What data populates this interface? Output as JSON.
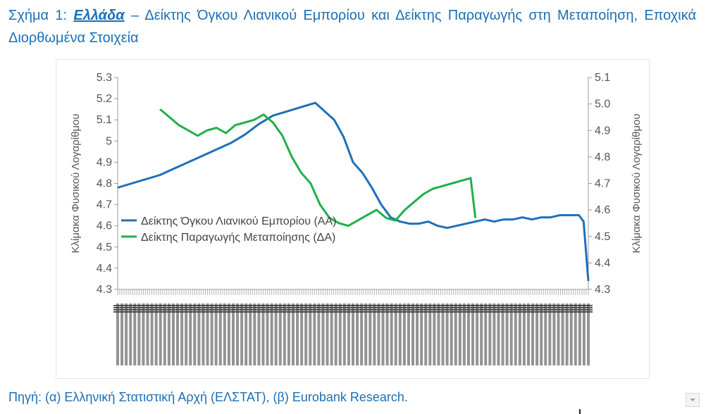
{
  "figure": {
    "prefix": "Σχήμα 1:",
    "country": "Ελλάδα",
    "rest": "– Δείκτης Όγκου Λιανικού Εμπορίου και Δείκτης Παραγωγής στη Μεταποίηση, Εποχικά Διορθωμένα Στοιχεία"
  },
  "source": "Πηγή: (α) Ελληνική Στατιστική Αρχή (ΕΛΣΤΑΤ), (β) Eurobank Research.",
  "chart_data": {
    "type": "line",
    "title": "",
    "ylabel_left": "Κλίμακα Φυσικού Λογαρίθμου",
    "ylabel_right": "Κλίμακα Φυσικού Λογαρίθμου",
    "ylim_left": [
      4.3,
      5.3
    ],
    "ylim_right": [
      4.3,
      5.1
    ],
    "yticks_left": [
      "5.3",
      "5.2",
      "5.1",
      "5",
      "4.9",
      "4.8",
      "4.7",
      "4.6",
      "4.5",
      "4.4",
      "4.3"
    ],
    "yticks_right": [
      "5.1",
      "5.0",
      "4.9",
      "4.8",
      "4.7",
      "4.6",
      "4.5",
      "4.4",
      "4.3"
    ],
    "grid": false,
    "legend_position": "left-middle",
    "x_index_range": [
      0,
      100
    ],
    "series": [
      {
        "name": "Δείκτης Όγκου Λιανικού Εμπορίου (ΑΑ)",
        "axis": "left",
        "color": "#1f6fb8",
        "x": [
          0,
          3,
          6,
          9,
          12,
          15,
          18,
          21,
          24,
          27,
          30,
          33,
          36,
          39,
          42,
          44,
          46,
          48,
          50,
          52,
          54,
          56,
          58,
          60,
          62,
          64,
          66,
          68,
          70,
          72,
          74,
          76,
          78,
          80,
          82,
          84,
          86,
          88,
          90,
          92,
          94,
          96,
          98,
          99,
          100
        ],
        "values": [
          4.78,
          4.8,
          4.82,
          4.84,
          4.87,
          4.9,
          4.93,
          4.96,
          4.99,
          5.03,
          5.08,
          5.12,
          5.14,
          5.16,
          5.18,
          5.14,
          5.1,
          5.02,
          4.9,
          4.85,
          4.78,
          4.7,
          4.64,
          4.62,
          4.61,
          4.61,
          4.62,
          4.6,
          4.59,
          4.6,
          4.61,
          4.62,
          4.63,
          4.62,
          4.63,
          4.63,
          4.64,
          4.63,
          4.64,
          4.64,
          4.65,
          4.65,
          4.65,
          4.62,
          4.34
        ]
      },
      {
        "name": "Δείκτης Παραγωγής Μεταποίησης (ΔΑ)",
        "axis": "right",
        "color": "#1fb04b",
        "x": [
          9,
          11,
          13,
          15,
          17,
          19,
          21,
          23,
          25,
          27,
          29,
          31,
          33,
          35,
          37,
          39,
          41,
          43,
          45,
          47,
          49,
          51,
          53,
          55,
          57,
          59,
          61,
          63,
          65,
          67,
          69,
          71,
          73,
          75,
          76
        ],
        "values": [
          4.98,
          4.95,
          4.92,
          4.9,
          4.88,
          4.9,
          4.91,
          4.89,
          4.92,
          4.93,
          4.94,
          4.96,
          4.93,
          4.88,
          4.8,
          4.74,
          4.7,
          4.62,
          4.57,
          4.55,
          4.54,
          4.56,
          4.58,
          4.6,
          4.57,
          4.56,
          4.6,
          4.63,
          4.66,
          4.68,
          4.69,
          4.7,
          4.71,
          4.72,
          4.57
        ]
      }
    ]
  }
}
